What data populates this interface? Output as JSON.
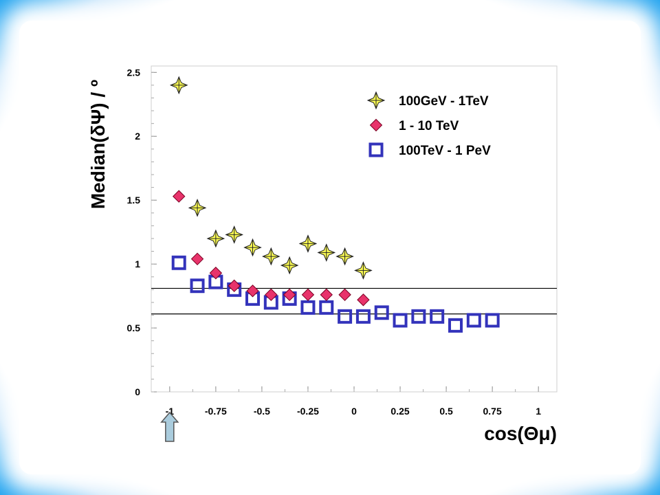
{
  "chart_data": {
    "type": "scatter",
    "xlabel": "cos(Θμ)",
    "ylabel": "Median(δΨ) / º",
    "xlim": [
      -1.1,
      1.1
    ],
    "ylim": [
      0,
      2.55
    ],
    "xticks": [
      -1,
      -0.75,
      -0.5,
      -0.25,
      0,
      0.25,
      0.5,
      0.75,
      1
    ],
    "xtick_labels": [
      "-1",
      "-0.75",
      "-0.5",
      "-0.25",
      "0",
      "0.25",
      "0.5",
      "0.75",
      "1"
    ],
    "yticks": [
      0,
      0.5,
      1,
      1.5,
      2,
      2.5
    ],
    "ytick_labels": [
      "0",
      "0.5",
      "1",
      "1.5",
      "2",
      "2.5"
    ],
    "grid": false,
    "legend_position": "top-right",
    "reference_lines_y": [
      0.81,
      0.61
    ],
    "arrow_marker_x": -1,
    "series": [
      {
        "name": "100GeV - 1TeV",
        "marker": "star",
        "color": "#ffff55",
        "x": [
          -0.95,
          -0.85,
          -0.75,
          -0.65,
          -0.55,
          -0.45,
          -0.35,
          -0.25,
          -0.15,
          -0.05,
          0.05
        ],
        "y": [
          2.4,
          1.44,
          1.2,
          1.23,
          1.13,
          1.06,
          0.99,
          1.16,
          1.09,
          1.06,
          0.95
        ]
      },
      {
        "name": "1 - 10 TeV",
        "marker": "diamond",
        "color": "#e8336b",
        "x": [
          -0.95,
          -0.85,
          -0.75,
          -0.65,
          -0.55,
          -0.45,
          -0.35,
          -0.25,
          -0.15,
          -0.05,
          0.05
        ],
        "y": [
          1.53,
          1.04,
          0.93,
          0.83,
          0.79,
          0.76,
          0.76,
          0.76,
          0.76,
          0.76,
          0.72
        ]
      },
      {
        "name": "100TeV - 1 PeV",
        "marker": "square",
        "color": "#3333bb",
        "x": [
          -0.95,
          -0.85,
          -0.75,
          -0.65,
          -0.55,
          -0.45,
          -0.35,
          -0.25,
          -0.15,
          -0.05,
          0.05,
          0.15,
          0.25,
          0.35,
          0.45,
          0.55,
          0.65,
          0.75
        ],
        "y": [
          1.01,
          0.83,
          0.86,
          0.8,
          0.73,
          0.7,
          0.73,
          0.66,
          0.66,
          0.59,
          0.59,
          0.62,
          0.56,
          0.59,
          0.59,
          0.52,
          0.56,
          0.56
        ]
      }
    ]
  }
}
